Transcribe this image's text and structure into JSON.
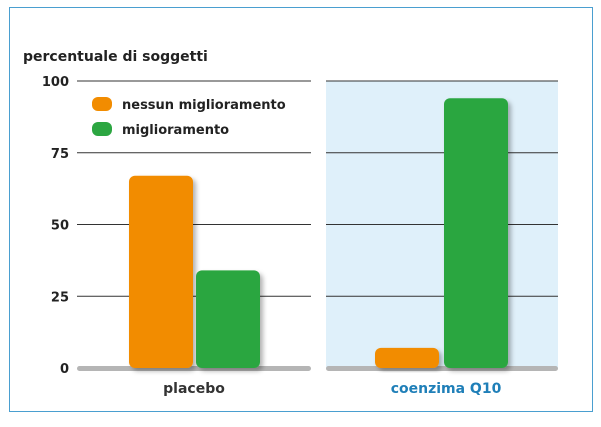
{
  "chart_data": {
    "type": "bar",
    "ylabel": "percentuale di soggetti",
    "ylim": [
      0,
      100
    ],
    "yticks": [
      0,
      25,
      50,
      75,
      100
    ],
    "grid": true,
    "legend_position": "top-left",
    "categories": [
      "placebo",
      "coenzima Q10"
    ],
    "series": [
      {
        "name": "nessun miglioramento",
        "color": "#f28c00",
        "values": [
          67,
          7
        ]
      },
      {
        "name": "miglioramento",
        "color": "#2ca641",
        "values": [
          34,
          94
        ]
      }
    ],
    "category_label_colors": [
      "#333333",
      "#1f7fb8"
    ],
    "highlight_category": "coenzima Q10",
    "highlight_color": "#dff0fa"
  }
}
